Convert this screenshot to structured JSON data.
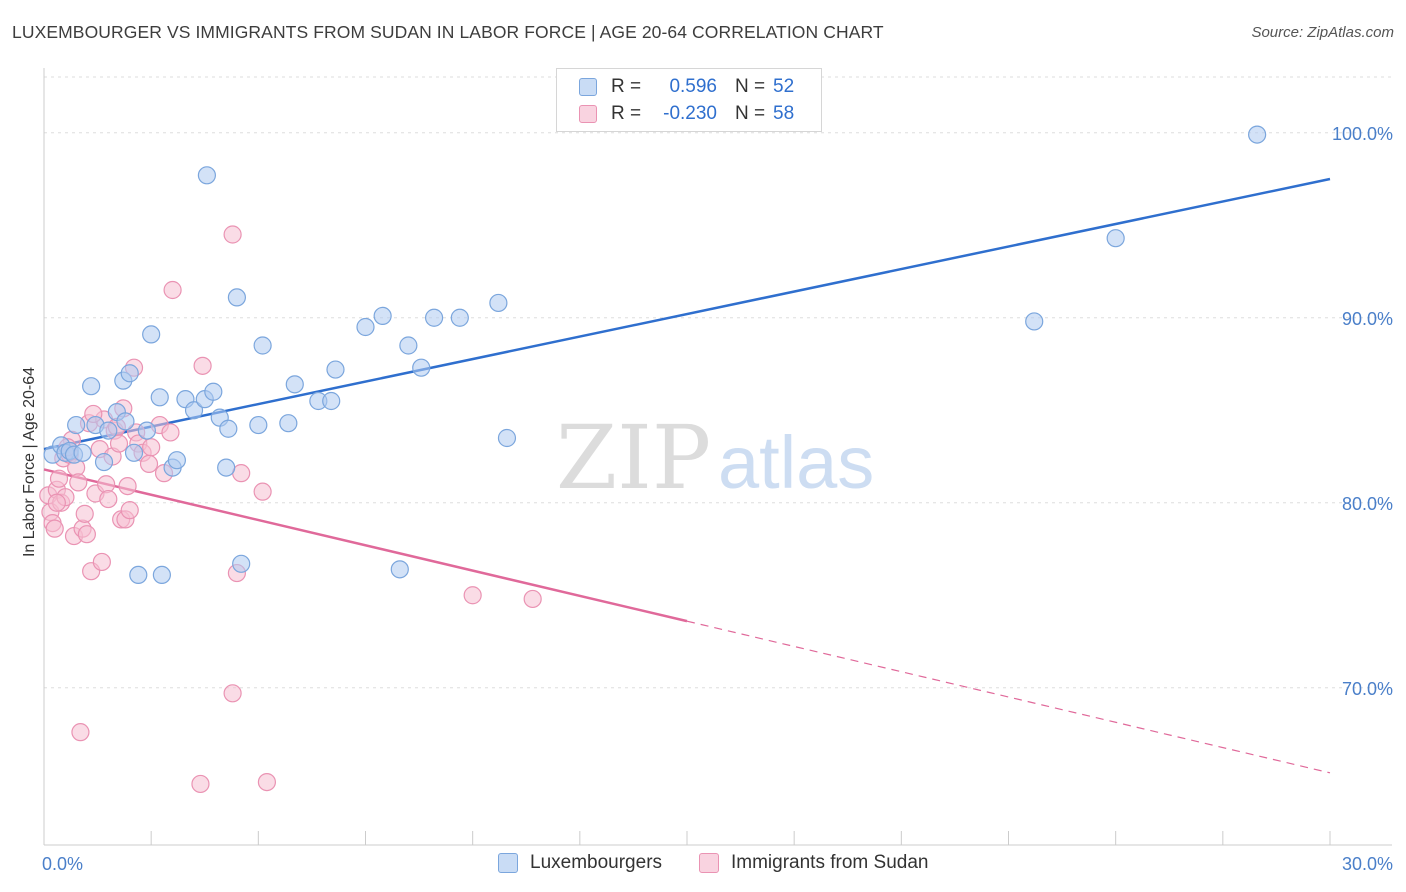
{
  "header": {
    "title": "LUXEMBOURGER VS IMMIGRANTS FROM SUDAN IN LABOR FORCE | AGE 20-64 CORRELATION CHART",
    "source": "Source: ZipAtlas.com"
  },
  "watermark": {
    "zip": "ZIP",
    "atlas": "atlas"
  },
  "legend": {
    "rows": [
      {
        "r_label": "R =",
        "r_value": "0.596",
        "n_label": "N =",
        "n_value": "52"
      },
      {
        "r_label": "R =",
        "r_value": "-0.230",
        "n_label": "N =",
        "n_value": "58"
      }
    ]
  },
  "bottom_legend": {
    "items": [
      "Luxembourgers",
      "Immigrants from Sudan"
    ]
  },
  "colors": {
    "blue_fill": "#aecbf0",
    "blue_stroke": "#7ba6dd",
    "blue_line": "#2f6fce",
    "pink_fill": "#f6bfd2",
    "pink_stroke": "#ea93b3",
    "pink_line": "#e0699a",
    "grid": "#dddddd",
    "tick_text": "#4a7fc9"
  },
  "chart_data": {
    "type": "scatter",
    "title": "LUXEMBOURGER VS IMMIGRANTS FROM SUDAN IN LABOR FORCE | AGE 20-64 CORRELATION CHART",
    "xlabel": "",
    "ylabel": "In Labor Force | Age 20-64",
    "xlim": [
      0,
      30
    ],
    "ylim": [
      61.5,
      103.5
    ],
    "x_tick_labels": [
      {
        "value": 0,
        "label": "0.0%"
      },
      {
        "value": 30,
        "label": "30.0%"
      }
    ],
    "y_tick_labels": [
      {
        "value": 100,
        "label": "100.0%"
      },
      {
        "value": 90,
        "label": "90.0%"
      },
      {
        "value": 80,
        "label": "80.0%"
      },
      {
        "value": 70,
        "label": "70.0%"
      }
    ],
    "grid": true,
    "legend_position": "top-center",
    "series": [
      {
        "name": "Luxembourgers",
        "r": 0.596,
        "n": 52,
        "trend": {
          "x": [
            0,
            30
          ],
          "y": [
            82.9,
            97.5
          ],
          "dashed_from": null
        },
        "points": [
          [
            0.2,
            82.6
          ],
          [
            0.4,
            83.1
          ],
          [
            0.5,
            82.7
          ],
          [
            0.6,
            82.8
          ],
          [
            0.7,
            82.6
          ],
          [
            0.75,
            84.2
          ],
          [
            1.1,
            86.3
          ],
          [
            1.2,
            84.2
          ],
          [
            1.4,
            82.2
          ],
          [
            1.5,
            83.9
          ],
          [
            1.7,
            84.9
          ],
          [
            1.85,
            86.6
          ],
          [
            2.0,
            87.0
          ],
          [
            2.1,
            82.7
          ],
          [
            2.2,
            76.1
          ],
          [
            2.4,
            83.9
          ],
          [
            2.5,
            89.1
          ],
          [
            2.7,
            85.7
          ],
          [
            3.0,
            81.9
          ],
          [
            3.1,
            82.3
          ],
          [
            3.3,
            85.6
          ],
          [
            3.5,
            85.0
          ],
          [
            3.75,
            85.6
          ],
          [
            3.8,
            97.7
          ],
          [
            3.95,
            86.0
          ],
          [
            4.1,
            84.6
          ],
          [
            4.3,
            84.0
          ],
          [
            4.5,
            91.1
          ],
          [
            4.6,
            76.7
          ],
          [
            5.0,
            84.2
          ],
          [
            5.1,
            88.5
          ],
          [
            5.7,
            84.3
          ],
          [
            5.85,
            86.4
          ],
          [
            6.4,
            85.5
          ],
          [
            6.7,
            85.5
          ],
          [
            6.8,
            87.2
          ],
          [
            7.5,
            89.5
          ],
          [
            7.9,
            90.1
          ],
          [
            8.3,
            76.4
          ],
          [
            8.5,
            88.5
          ],
          [
            8.8,
            87.3
          ],
          [
            9.1,
            90.0
          ],
          [
            9.7,
            90.0
          ],
          [
            10.6,
            90.8
          ],
          [
            10.8,
            83.5
          ],
          [
            2.75,
            76.1
          ],
          [
            4.25,
            81.9
          ],
          [
            0.9,
            82.7
          ],
          [
            1.9,
            84.4
          ],
          [
            23.1,
            89.8
          ],
          [
            25.0,
            94.3
          ],
          [
            28.3,
            99.9
          ]
        ]
      },
      {
        "name": "Immigrants from Sudan",
        "r": -0.23,
        "n": 58,
        "trend": {
          "x": [
            0,
            30
          ],
          "y": [
            81.8,
            65.4
          ],
          "dashed_from": 15
        },
        "points": [
          [
            0.1,
            80.4
          ],
          [
            0.15,
            79.5
          ],
          [
            0.2,
            78.9
          ],
          [
            0.25,
            78.6
          ],
          [
            0.3,
            80.7
          ],
          [
            0.35,
            81.3
          ],
          [
            0.4,
            80.0
          ],
          [
            0.45,
            82.4
          ],
          [
            0.5,
            80.3
          ],
          [
            0.6,
            82.6
          ],
          [
            0.65,
            83.4
          ],
          [
            0.7,
            78.2
          ],
          [
            0.75,
            81.9
          ],
          [
            0.8,
            81.1
          ],
          [
            0.9,
            78.6
          ],
          [
            0.95,
            79.4
          ],
          [
            1.0,
            78.3
          ],
          [
            1.05,
            84.3
          ],
          [
            1.1,
            76.3
          ],
          [
            1.2,
            80.5
          ],
          [
            1.3,
            82.9
          ],
          [
            1.35,
            76.8
          ],
          [
            1.4,
            84.5
          ],
          [
            1.45,
            81.0
          ],
          [
            1.5,
            80.2
          ],
          [
            1.6,
            82.5
          ],
          [
            1.65,
            83.9
          ],
          [
            1.7,
            84.1
          ],
          [
            1.75,
            83.2
          ],
          [
            1.8,
            79.1
          ],
          [
            1.85,
            85.1
          ],
          [
            1.9,
            79.1
          ],
          [
            1.95,
            80.9
          ],
          [
            2.0,
            79.6
          ],
          [
            2.1,
            87.3
          ],
          [
            2.15,
            83.8
          ],
          [
            2.2,
            83.2
          ],
          [
            2.3,
            82.7
          ],
          [
            2.5,
            83.0
          ],
          [
            2.7,
            84.2
          ],
          [
            2.8,
            81.6
          ],
          [
            2.95,
            83.8
          ],
          [
            3.0,
            91.5
          ],
          [
            3.7,
            87.4
          ],
          [
            4.4,
            94.5
          ],
          [
            4.5,
            76.2
          ],
          [
            4.6,
            81.6
          ],
          [
            5.1,
            80.6
          ],
          [
            5.2,
            64.9
          ],
          [
            4.4,
            69.7
          ],
          [
            3.65,
            64.8
          ],
          [
            0.85,
            67.6
          ],
          [
            10.0,
            75.0
          ],
          [
            11.4,
            74.8
          ],
          [
            1.15,
            84.8
          ],
          [
            0.55,
            83.0
          ],
          [
            2.45,
            82.1
          ],
          [
            0.3,
            80.0
          ]
        ]
      }
    ]
  }
}
